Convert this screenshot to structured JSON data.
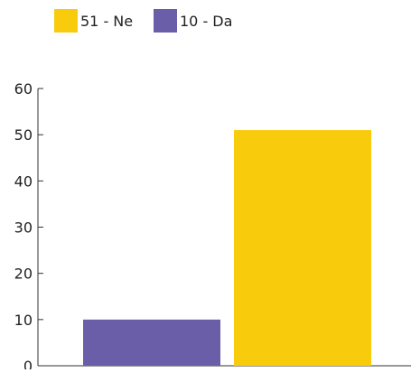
{
  "chart_data": {
    "type": "bar",
    "categories": [
      "Da",
      "Ne"
    ],
    "values": [
      10,
      51
    ],
    "colors": [
      "#6b5ea8",
      "#f8cc0d"
    ],
    "legend": {
      "placement": "top-left",
      "entries": [
        {
          "label": "51 - Ne",
          "color": "#f8cc0d"
        },
        {
          "label": "10 - Da",
          "color": "#6b5ea8"
        }
      ]
    },
    "ylim": [
      0,
      60
    ],
    "yticks": [
      0,
      10,
      20,
      30,
      40,
      50,
      60
    ],
    "title": "",
    "xlabel": "",
    "ylabel": "",
    "grid": false
  }
}
